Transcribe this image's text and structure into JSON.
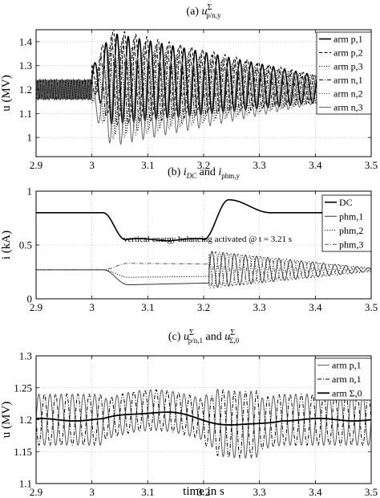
{
  "figure": {
    "xlabel": "time in s"
  },
  "chart_data": [
    {
      "id": "a",
      "type": "line",
      "title": "(a) u^Σ_p/n,y",
      "title_parts": {
        "prefix": "(a) ",
        "sym": "u",
        "sup": "Σ",
        "sub": "p/n,y"
      },
      "ylabel": "u (MV)",
      "xlim": [
        2.9,
        3.5
      ],
      "ylim": [
        0.92,
        1.45
      ],
      "xticks": [
        "2.9",
        "3",
        "3.1",
        "3.2",
        "3.3",
        "3.4",
        "3.5"
      ],
      "xtick_values": [
        2.9,
        3.0,
        3.1,
        3.2,
        3.3,
        3.4,
        3.5
      ],
      "yticks": [
        "1",
        "1.1",
        "1.2",
        "1.3",
        "1.4"
      ],
      "ytick_values": [
        1.0,
        1.1,
        1.2,
        1.3,
        1.4
      ],
      "grid": true,
      "legend_position": "right",
      "series": [
        {
          "name": "arm p,1",
          "dash": "solid",
          "width": 1.6,
          "color": "#000000",
          "phase": 0.0,
          "offset": 0.05
        },
        {
          "name": "arm p,2",
          "dash": "dash",
          "width": 1.0,
          "color": "#000000",
          "phase": 2.09,
          "offset": 0.07
        },
        {
          "name": "arm p,3",
          "dash": "dot",
          "width": 1.0,
          "color": "#000000",
          "phase": 4.19,
          "offset": 0.0
        },
        {
          "name": "arm n,1",
          "dash": "dashdot",
          "width": 1.0,
          "color": "#000000",
          "phase": 3.14,
          "offset": 0.04
        },
        {
          "name": "arm n,2",
          "dash": "dot",
          "width": 1.0,
          "color": "#555555",
          "phase": 5.23,
          "offset": -0.02
        },
        {
          "name": "arm n,3",
          "dash": "solid",
          "width": 1.0,
          "color": "#666666",
          "phase": 1.05,
          "offset": -0.05
        }
      ],
      "annotations": []
    },
    {
      "id": "b",
      "type": "line",
      "title": "(b) i_DC and i_phm,y",
      "title_parts": {
        "prefix": "(b) ",
        "sym1": "i",
        "sub1": "DC",
        "mid": " and ",
        "sym2": "i",
        "sub2": "phm,y"
      },
      "ylabel": "i (kA)",
      "xlim": [
        2.9,
        3.5
      ],
      "ylim": [
        0,
        1
      ],
      "xticks": [
        "2.9",
        "3",
        "3.1",
        "3.2",
        "3.3",
        "3.4",
        "3.5"
      ],
      "xtick_values": [
        2.9,
        3.0,
        3.1,
        3.2,
        3.3,
        3.4,
        3.5
      ],
      "yticks": [
        "0",
        "0.5",
        "1"
      ],
      "ytick_values": [
        0,
        0.5,
        1
      ],
      "grid": true,
      "legend_position": "right",
      "series": [
        {
          "name": "DC",
          "dash": "solid",
          "width": 1.6,
          "color": "#000000",
          "dc_level": 0.8,
          "dip_value": 0.55,
          "overshoot_value": 0.92
        },
        {
          "name": "phm,1",
          "dash": "solid",
          "width": 1.0,
          "color": "#333333",
          "initial": 0.27,
          "disturbed": 0.13,
          "phase": 0.0
        },
        {
          "name": "phm,2",
          "dash": "dot",
          "width": 1.0,
          "color": "#000000",
          "initial": 0.27,
          "disturbed": 0.2,
          "phase": 2.09
        },
        {
          "name": "phm,3",
          "dash": "dashdot",
          "width": 1.0,
          "color": "#555555",
          "initial": 0.27,
          "disturbed": 0.33,
          "phase": 4.19
        }
      ],
      "annotations": [
        {
          "text": "vertical energy balancing activated @ t = 3.21 s",
          "x": 3.21
        }
      ]
    },
    {
      "id": "c",
      "type": "line",
      "title": "(c) u^Σ_p/n,1 and u^Σ_Σ,0",
      "title_parts": {
        "prefix": "(c) ",
        "sym1": "u",
        "sup1": "Σ",
        "sub1": "p/n,1",
        "mid": " and ",
        "sym2": "u",
        "sup2": "Σ",
        "sub2": "Σ,0"
      },
      "ylabel": "u (MV)",
      "xlim": [
        2.9,
        3.5
      ],
      "ylim": [
        1.1,
        1.3
      ],
      "xticks": [
        "2.9",
        "3",
        "3.1",
        "3.2",
        "3.3",
        "3.4",
        "3.5"
      ],
      "xtick_values": [
        2.9,
        3.0,
        3.1,
        3.2,
        3.3,
        3.4,
        3.5
      ],
      "yticks": [
        "1.1",
        "1.15",
        "1.2",
        "1.25",
        "1.3"
      ],
      "ytick_values": [
        1.1,
        1.15,
        1.2,
        1.25,
        1.3
      ],
      "grid": true,
      "legend_position": "top-right",
      "series": [
        {
          "name": "arm p,1",
          "dash": "solid",
          "width": 1.0,
          "color": "#555555",
          "phase": 0.0
        },
        {
          "name": "arm n,1",
          "dash": "dashdot",
          "width": 1.0,
          "color": "#000000",
          "phase": 3.14
        },
        {
          "name": "arm Σ,0",
          "dash": "solid",
          "width": 1.8,
          "color": "#000000",
          "level": 1.2
        }
      ],
      "annotations": []
    }
  ]
}
